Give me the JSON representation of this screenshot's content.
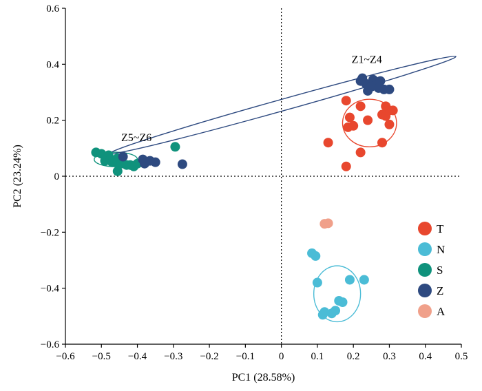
{
  "chart_data": {
    "type": "scatter",
    "xlabel": "PC1 (28.58%)",
    "ylabel": "PC2 (23.24%)",
    "xlim": [
      -0.6,
      0.5
    ],
    "ylim": [
      -0.6,
      0.6
    ],
    "xticks": [
      "-0.6",
      "-0.5",
      "-0.4",
      "-0.3",
      "-0.2",
      "-0.1",
      "0",
      "0.1",
      "0.2",
      "0.3",
      "0.4",
      "0.5"
    ],
    "yticks": [
      "-0.6",
      "-0.4",
      "-0.2",
      "0",
      "0.2",
      "0.4",
      "0.6"
    ],
    "grid": false,
    "legend_position": "right",
    "reference_lines": {
      "x": 0,
      "y": 0,
      "style": "dotted"
    },
    "series": [
      {
        "name": "T",
        "color": "#e8472e",
        "points": [
          [
            0.18,
            0.27
          ],
          [
            0.22,
            0.25
          ],
          [
            0.19,
            0.21
          ],
          [
            0.185,
            0.175
          ],
          [
            0.2,
            0.18
          ],
          [
            0.24,
            0.2
          ],
          [
            0.29,
            0.25
          ],
          [
            0.3,
            0.235
          ],
          [
            0.31,
            0.235
          ],
          [
            0.28,
            0.22
          ],
          [
            0.29,
            0.215
          ],
          [
            0.3,
            0.185
          ],
          [
            0.28,
            0.12
          ],
          [
            0.22,
            0.085
          ],
          [
            0.13,
            0.12
          ],
          [
            0.18,
            0.035
          ]
        ]
      },
      {
        "name": "N",
        "color": "#4bbcd6",
        "points": [
          [
            0.085,
            -0.275
          ],
          [
            0.095,
            -0.285
          ],
          [
            0.1,
            -0.38
          ],
          [
            0.19,
            -0.37
          ],
          [
            0.23,
            -0.37
          ],
          [
            0.17,
            -0.45
          ],
          [
            0.16,
            -0.445
          ],
          [
            0.15,
            -0.48
          ],
          [
            0.14,
            -0.49
          ],
          [
            0.12,
            -0.485
          ],
          [
            0.115,
            -0.495
          ]
        ]
      },
      {
        "name": "S",
        "color": "#0f927c",
        "points": [
          [
            -0.515,
            0.085
          ],
          [
            -0.5,
            0.08
          ],
          [
            -0.48,
            0.075
          ],
          [
            -0.455,
            0.065
          ],
          [
            -0.49,
            0.055
          ],
          [
            -0.475,
            0.06
          ],
          [
            -0.47,
            0.05
          ],
          [
            -0.455,
            0.05
          ],
          [
            -0.445,
            0.045
          ],
          [
            -0.43,
            0.04
          ],
          [
            -0.41,
            0.035
          ],
          [
            -0.42,
            0.04
          ],
          [
            -0.4,
            0.045
          ],
          [
            -0.455,
            0.018
          ],
          [
            -0.295,
            0.105
          ]
        ]
      },
      {
        "name": "Z",
        "color": "#2e4a80",
        "points": [
          [
            -0.44,
            0.07
          ],
          [
            -0.385,
            0.06
          ],
          [
            -0.38,
            0.045
          ],
          [
            -0.365,
            0.055
          ],
          [
            -0.35,
            0.05
          ],
          [
            -0.275,
            0.043
          ],
          [
            0.225,
            0.35
          ],
          [
            0.22,
            0.34
          ],
          [
            0.235,
            0.33
          ],
          [
            0.255,
            0.345
          ],
          [
            0.265,
            0.335
          ],
          [
            0.275,
            0.34
          ],
          [
            0.25,
            0.32
          ],
          [
            0.24,
            0.305
          ],
          [
            0.27,
            0.315
          ],
          [
            0.285,
            0.31
          ],
          [
            0.3,
            0.31
          ]
        ]
      },
      {
        "name": "A",
        "color": "#f0a08a",
        "points": [
          [
            0.12,
            -0.17
          ],
          [
            0.13,
            -0.168
          ]
        ]
      }
    ],
    "ellipses": [
      {
        "series": "T",
        "color": "#e8472e",
        "cx": 0.245,
        "cy": 0.19,
        "rx": 0.075,
        "ry": 0.085,
        "angle_deg": 0
      },
      {
        "series": "N",
        "color": "#4bbcd6",
        "cx": 0.155,
        "cy": -0.42,
        "rx": 0.065,
        "ry": 0.1,
        "angle_deg": 0
      },
      {
        "series": "S",
        "color": "#0f927c",
        "cx": -0.46,
        "cy": 0.06,
        "rx": 0.06,
        "ry": 0.026,
        "angle_deg": 0
      },
      {
        "series": "Z",
        "color": "#2e4a80",
        "cx": 0.005,
        "cy": 0.255,
        "rx": 0.51,
        "ry": 0.02,
        "angle_deg": -19.8
      }
    ],
    "annotations": [
      {
        "text": "Z1~Z4",
        "x": 0.195,
        "y": 0.405
      },
      {
        "text": "Z5~Z6",
        "x": -0.445,
        "y": 0.125
      }
    ]
  }
}
